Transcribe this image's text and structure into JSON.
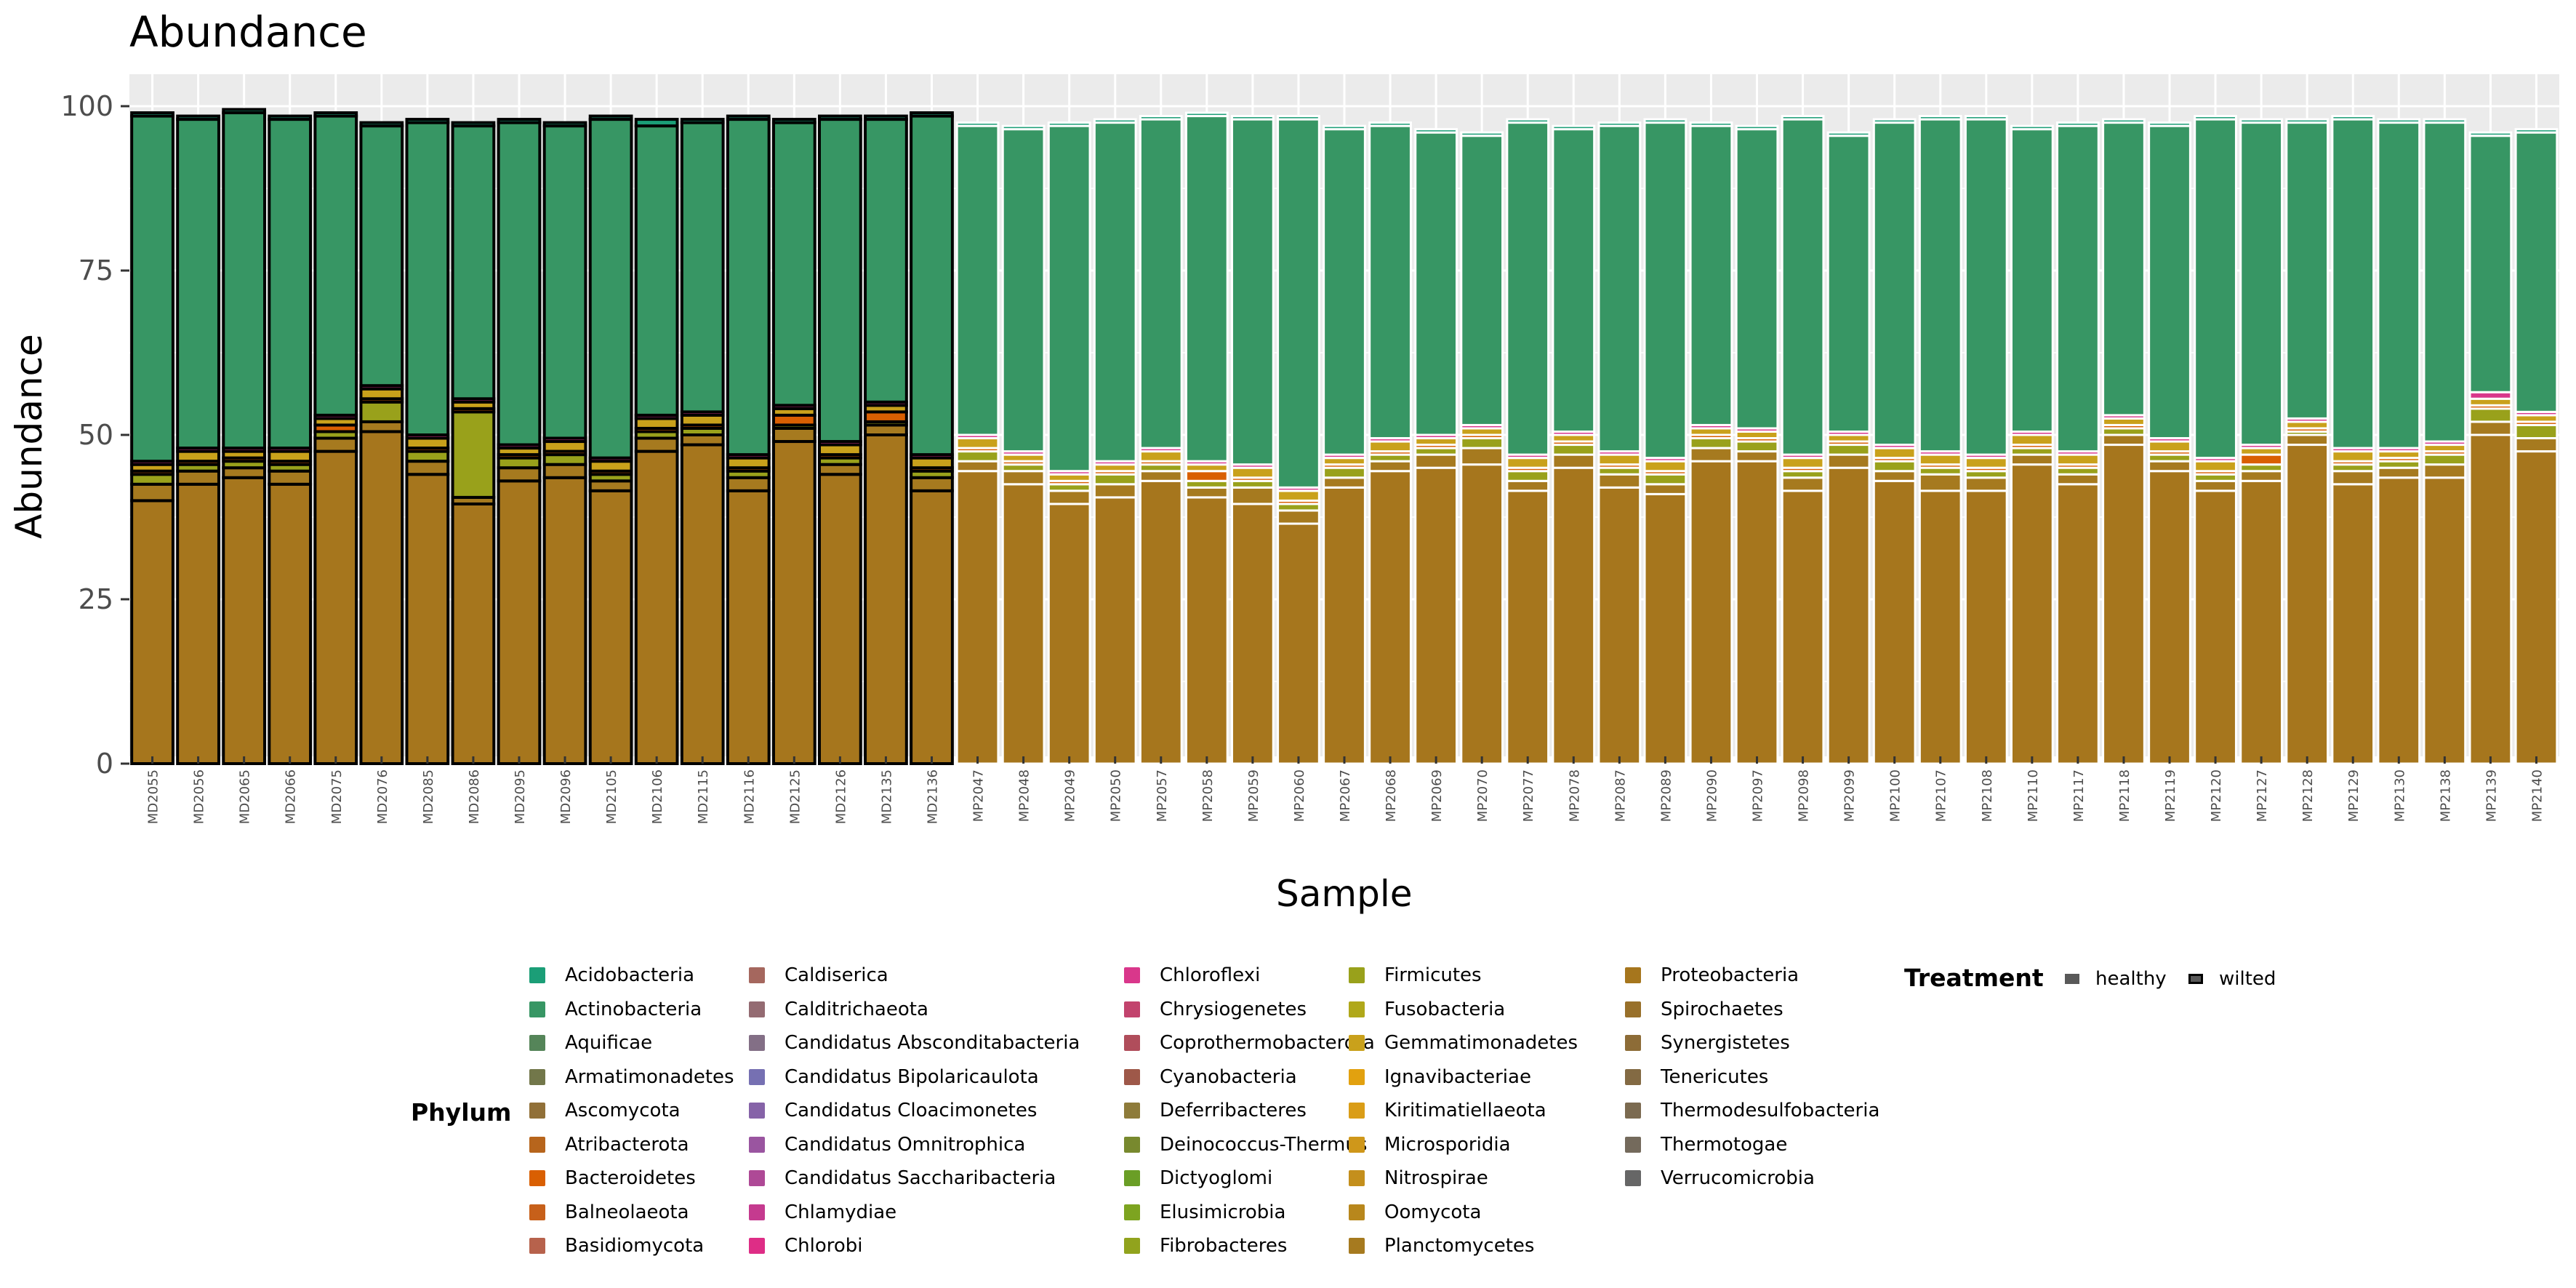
{
  "chart_data": {
    "type": "bar",
    "stacked": true,
    "title": "Abundance",
    "xlabel": "Sample",
    "ylabel": "Abundance",
    "ylim": [
      0,
      100
    ],
    "yticks": [
      0,
      25,
      50,
      75,
      100
    ],
    "grid": true,
    "legend_position": "bottom",
    "colors": {
      "panel_background": "#EBEBEB",
      "gridline": "#FFFFFF",
      "wilted_outline": "#000000",
      "healthy_outline": "#FFFFFF"
    },
    "categories": [
      "MD2055",
      "MD2056",
      "MD2065",
      "MD2066",
      "MD2075",
      "MD2076",
      "MD2085",
      "MD2086",
      "MD2095",
      "MD2096",
      "MD2105",
      "MD2106",
      "MD2115",
      "MD2116",
      "MD2125",
      "MD2126",
      "MD2135",
      "MD2136",
      "MP2047",
      "MP2048",
      "MP2049",
      "MP2050",
      "MP2057",
      "MP2058",
      "MP2059",
      "MP2060",
      "MP2067",
      "MP2068",
      "MP2069",
      "MP2070",
      "MP2077",
      "MP2078",
      "MP2087",
      "MP2089",
      "MP2090",
      "MP2097",
      "MP2098",
      "MP2099",
      "MP2100",
      "MP2107",
      "MP2108",
      "MP2110",
      "MP2117",
      "MP2118",
      "MP2119",
      "MP2120",
      "MP2127",
      "MP2128",
      "MP2129",
      "MP2130",
      "MP2138",
      "MP2139",
      "MP2140"
    ],
    "treatment": [
      "wilted",
      "wilted",
      "wilted",
      "wilted",
      "wilted",
      "wilted",
      "wilted",
      "wilted",
      "wilted",
      "wilted",
      "wilted",
      "wilted",
      "wilted",
      "wilted",
      "wilted",
      "wilted",
      "wilted",
      "wilted",
      "healthy",
      "healthy",
      "healthy",
      "healthy",
      "healthy",
      "healthy",
      "healthy",
      "healthy",
      "healthy",
      "healthy",
      "healthy",
      "healthy",
      "healthy",
      "healthy",
      "healthy",
      "healthy",
      "healthy",
      "healthy",
      "healthy",
      "healthy",
      "healthy",
      "healthy",
      "healthy",
      "healthy",
      "healthy",
      "healthy",
      "healthy",
      "healthy",
      "healthy",
      "healthy",
      "healthy",
      "healthy",
      "healthy",
      "healthy",
      "healthy"
    ],
    "series": [
      {
        "name": "Proteobacteria",
        "color": "#A6761D",
        "values": [
          40,
          42.5,
          43.5,
          42.5,
          47.5,
          50.5,
          44,
          39.5,
          43,
          43.5,
          41.5,
          47.5,
          48.5,
          41.5,
          49,
          44,
          50,
          41.5,
          44.5,
          42.5,
          39.5,
          40.5,
          43,
          40.5,
          39.5,
          36.5,
          42,
          44.5,
          45,
          45.5,
          41.5,
          45,
          42,
          41,
          46,
          46,
          41.5,
          45,
          43,
          41.5,
          41.5,
          45.5,
          42.5,
          48.5,
          44.5,
          41.5,
          43,
          48.5,
          42.5,
          43.5,
          43.5,
          50,
          47.5
        ]
      },
      {
        "name": "Planctomycetes",
        "color": "#A67A1F",
        "values": [
          2.5,
          2,
          1.5,
          2,
          2,
          1.5,
          2,
          1,
          2,
          2,
          1.5,
          2,
          1.5,
          2,
          2,
          1.5,
          1.5,
          2,
          1.5,
          2,
          2,
          2,
          1.5,
          1.5,
          2.5,
          2,
          1.5,
          1.5,
          2,
          2.5,
          1.5,
          2,
          2,
          1.5,
          2,
          1.5,
          2,
          2,
          1.5,
          2.5,
          2,
          1.5,
          1.5,
          1.5,
          1.5,
          1.5,
          1.5,
          1.5,
          2,
          1.5,
          2,
          2,
          2
        ]
      },
      {
        "name": "Firmicutes",
        "color": "#99A11B",
        "values": [
          1.5,
          1,
          1,
          1,
          1,
          3,
          1.5,
          13,
          1.5,
          1.5,
          1,
          1,
          1,
          1,
          0.5,
          1,
          0.5,
          1,
          1.5,
          1,
          1,
          1.5,
          1,
          1,
          1,
          1,
          1.5,
          1,
          1,
          1.5,
          1.5,
          1.5,
          1,
          1.5,
          1.5,
          1.5,
          1,
          1.5,
          1.5,
          1,
          1,
          1,
          1,
          1,
          1,
          1,
          1,
          0.5,
          1,
          1,
          1.5,
          2,
          2
        ]
      },
      {
        "name": "Bacteroidetes",
        "color": "#D95F02",
        "values": [
          0.5,
          0.5,
          0.5,
          0.5,
          1,
          0.5,
          0.5,
          0.5,
          0.5,
          0.5,
          0.5,
          0.5,
          0.5,
          0.5,
          1.5,
          0.5,
          1.5,
          0.5,
          0.5,
          0.5,
          0.5,
          0.5,
          0.5,
          1.5,
          0.5,
          0.5,
          0.5,
          0.5,
          0.5,
          0.5,
          0.5,
          0.5,
          0.5,
          0.5,
          0.5,
          0.5,
          0.5,
          0.5,
          0.5,
          0.5,
          0.5,
          0.5,
          0.5,
          0.5,
          0.5,
          0.5,
          1.5,
          0.5,
          0.5,
          0.5,
          0.5,
          0.5,
          0.5
        ]
      },
      {
        "name": "Gemmatimonadetes",
        "color": "#C9A11B",
        "values": [
          1,
          1.5,
          1,
          1.5,
          1,
          1.5,
          1.5,
          1,
          1,
          1.5,
          1.5,
          1.5,
          1.5,
          1.5,
          1,
          1.5,
          1,
          1.5,
          1.5,
          1,
          1,
          1,
          1.5,
          1,
          1.5,
          1.5,
          1,
          1.5,
          1,
          1,
          1.5,
          1,
          1.5,
          1.5,
          1,
          1,
          1.5,
          1,
          1.5,
          1.5,
          1.5,
          1.5,
          1.5,
          1,
          1.5,
          1.5,
          1,
          1,
          1.5,
          1,
          1,
          1,
          1
        ]
      },
      {
        "name": "Chloroflexi",
        "color": "#D9378B",
        "values": [
          0.5,
          0.5,
          0.5,
          0.5,
          0.5,
          0.5,
          0.5,
          0.5,
          0.5,
          0.5,
          0.5,
          0.5,
          0.5,
          0.5,
          0.5,
          0.5,
          0.5,
          0.5,
          0.5,
          0.5,
          0.5,
          0.5,
          0.5,
          0.5,
          0.5,
          0.5,
          0.5,
          0.5,
          0.5,
          0.5,
          0.5,
          0.5,
          0.5,
          0.5,
          0.5,
          0.5,
          0.5,
          0.5,
          0.5,
          0.5,
          0.5,
          0.5,
          0.5,
          0.5,
          0.5,
          0.5,
          0.5,
          0.5,
          0.5,
          0.5,
          0.5,
          1,
          0.5
        ]
      },
      {
        "name": "Actinobacteria",
        "color": "#379664",
        "values": [
          52.5,
          50,
          51,
          50,
          45.5,
          39.5,
          47.5,
          41.5,
          49,
          47.5,
          51.5,
          44,
          44,
          51,
          43,
          49,
          43,
          51.5,
          47,
          49,
          52.5,
          51.5,
          50,
          52.5,
          52.5,
          56,
          49.5,
          47.5,
          46,
          44,
          50.5,
          46,
          49.5,
          51,
          45.5,
          45.5,
          51,
          45,
          49,
          50.5,
          51,
          46,
          49.5,
          44.5,
          47.5,
          51.5,
          49,
          45,
          50,
          49.5,
          48.5,
          39,
          42.5
        ]
      },
      {
        "name": "Acidobacteria",
        "color": "#1B9E77",
        "values": [
          0.5,
          0.5,
          0.5,
          0.5,
          0.5,
          0.5,
          0.5,
          0.5,
          0.5,
          0.5,
          0.5,
          1,
          0.5,
          0.5,
          0.5,
          0.5,
          0.5,
          0.5,
          0.5,
          0.5,
          0.5,
          0.5,
          0.5,
          0.5,
          0.5,
          0.5,
          0.5,
          0.5,
          0.5,
          0.5,
          0.5,
          0.5,
          0.5,
          0.5,
          0.5,
          0.5,
          0.5,
          0.5,
          0.5,
          0.5,
          0.5,
          0.5,
          0.5,
          0.5,
          0.5,
          0.5,
          0.5,
          0.5,
          0.5,
          0.5,
          0.5,
          0.5,
          0.5
        ]
      }
    ],
    "legend": {
      "phylum_title": "Phylum",
      "phylum_columns": [
        [
          {
            "name": "Acidobacteria",
            "color": "#1B9E77"
          },
          {
            "name": "Actinobacteria",
            "color": "#379664"
          },
          {
            "name": "Aquificae",
            "color": "#558559"
          },
          {
            "name": "Armatimonadetes",
            "color": "#72774A"
          },
          {
            "name": "Ascomycota",
            "color": "#917038"
          },
          {
            "name": "Atribacterota",
            "color": "#B7651C"
          },
          {
            "name": "Bacteroidetes",
            "color": "#D95F02"
          },
          {
            "name": "Balneolaeota",
            "color": "#C7601A"
          },
          {
            "name": "Basidiomycota",
            "color": "#B7624C"
          }
        ],
        [
          {
            "name": "Caldiserica",
            "color": "#A5675E"
          },
          {
            "name": "Calditrichaeota",
            "color": "#946B72"
          },
          {
            "name": "Candidatus Absconditabacteria",
            "color": "#836F86"
          },
          {
            "name": "Candidatus Bipolaricaulota",
            "color": "#7670B2"
          },
          {
            "name": "Candidatus Cloacimonetes",
            "color": "#8663A8"
          },
          {
            "name": "Candidatus Omnitrophica",
            "color": "#9A55A0"
          },
          {
            "name": "Candidatus Saccharibacteria",
            "color": "#AE4996"
          },
          {
            "name": "Chlamydiae",
            "color": "#C53A8F"
          },
          {
            "name": "Chlorobi",
            "color": "#DE2D86"
          }
        ],
        [
          {
            "name": "Chloroflexi",
            "color": "#D9378B"
          },
          {
            "name": "Chrysiogenetes",
            "color": "#C2436D"
          },
          {
            "name": "Coprothermobacterota",
            "color": "#B04D5B"
          },
          {
            "name": "Cyanobacteria",
            "color": "#9E5849"
          },
          {
            "name": "Deferribacteres",
            "color": "#8E7B3A"
          },
          {
            "name": "Deinococcus-Thermus",
            "color": "#78892E"
          },
          {
            "name": "Dictyoglomi",
            "color": "#6A9E26"
          },
          {
            "name": "Elusimicrobia",
            "color": "#7DA420"
          },
          {
            "name": "Fibrobacteres",
            "color": "#91A31D"
          }
        ],
        [
          {
            "name": "Firmicutes",
            "color": "#99A11B"
          },
          {
            "name": "Fusobacteria",
            "color": "#B0A81A"
          },
          {
            "name": "Gemmatimonadetes",
            "color": "#C9A11B"
          },
          {
            "name": "Ignavibacteriae",
            "color": "#E2A10F"
          },
          {
            "name": "Kiritimatiellaeota",
            "color": "#DA9D17"
          },
          {
            "name": "Microsporidia",
            "color": "#CF971A"
          },
          {
            "name": "Nitrospirae",
            "color": "#C48F1C"
          },
          {
            "name": "Oomycota",
            "color": "#B8871C"
          },
          {
            "name": "Planctomycetes",
            "color": "#A67A1F"
          }
        ],
        [
          {
            "name": "Proteobacteria",
            "color": "#A6761D"
          },
          {
            "name": "Spirochaetes",
            "color": "#98702A"
          },
          {
            "name": "Synergistetes",
            "color": "#8D6C37"
          },
          {
            "name": "Tenericutes",
            "color": "#836A43"
          },
          {
            "name": "Thermodesulfobacteria",
            "color": "#7B6A50"
          },
          {
            "name": "Thermotogae",
            "color": "#746A5C"
          },
          {
            "name": "Verrucomicrobia",
            "color": "#666666"
          }
        ]
      ],
      "treatment_title": "Treatment",
      "treatment_items": [
        {
          "name": "healthy",
          "outline": "#FFFFFF"
        },
        {
          "name": "wilted",
          "outline": "#000000"
        }
      ]
    }
  }
}
